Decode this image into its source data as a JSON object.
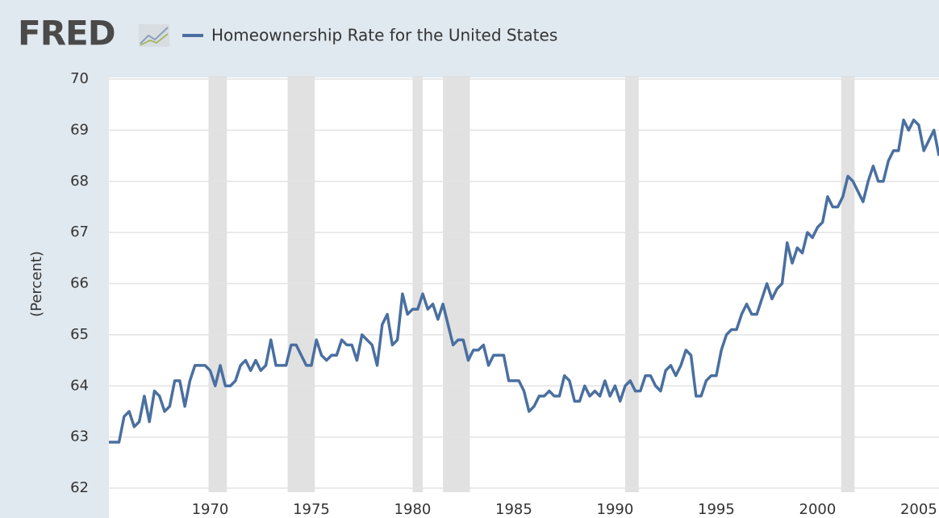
{
  "logo": "FRED",
  "chart_data": {
    "type": "line",
    "ylabel": "(Percent)",
    "x": [
      1965,
      1965.25,
      1965.5,
      1965.75,
      1966,
      1966.25,
      1966.5,
      1966.75,
      1967,
      1967.25,
      1967.5,
      1967.75,
      1968,
      1968.25,
      1968.5,
      1968.75,
      1969,
      1969.25,
      1969.5,
      1969.75,
      1970,
      1970.25,
      1970.5,
      1970.75,
      1971,
      1971.25,
      1971.5,
      1971.75,
      1972,
      1972.25,
      1972.5,
      1972.75,
      1973,
      1973.25,
      1973.5,
      1973.75,
      1974,
      1974.25,
      1974.5,
      1974.75,
      1975,
      1975.25,
      1975.5,
      1975.75,
      1976,
      1976.25,
      1976.5,
      1976.75,
      1977,
      1977.25,
      1977.5,
      1977.75,
      1978,
      1978.25,
      1978.5,
      1978.75,
      1979,
      1979.25,
      1979.5,
      1979.75,
      1980,
      1980.25,
      1980.5,
      1980.75,
      1981,
      1981.25,
      1981.5,
      1981.75,
      1982,
      1982.25,
      1982.5,
      1982.75,
      1983,
      1983.25,
      1983.5,
      1983.75,
      1984,
      1984.25,
      1984.5,
      1984.75,
      1985,
      1985.25,
      1985.5,
      1985.75,
      1986,
      1986.25,
      1986.5,
      1986.75,
      1987,
      1987.25,
      1987.5,
      1987.75,
      1988,
      1988.25,
      1988.5,
      1988.75,
      1989,
      1989.25,
      1989.5,
      1989.75,
      1990,
      1990.25,
      1990.5,
      1990.75,
      1991,
      1991.25,
      1991.5,
      1991.75,
      1992,
      1992.25,
      1992.5,
      1992.75,
      1993,
      1993.25,
      1993.5,
      1993.75,
      1994,
      1994.25,
      1994.5,
      1994.75,
      1995,
      1995.25,
      1995.5,
      1995.75,
      1996,
      1996.25,
      1996.5,
      1996.75,
      1997,
      1997.25,
      1997.5,
      1997.75,
      1998,
      1998.25,
      1998.5,
      1998.75,
      1999,
      1999.25,
      1999.5,
      1999.75,
      2000,
      2000.25,
      2000.5,
      2000.75,
      2001,
      2001.25,
      2001.5,
      2001.75,
      2002,
      2002.25,
      2002.5,
      2002.75,
      2003,
      2003.25,
      2003.5,
      2003.75,
      2004,
      2004.25,
      2004.5,
      2004.75,
      2005,
      2005.25,
      2005.5,
      2005.75,
      2006
    ],
    "series": [
      {
        "name": "Homeownership Rate for the United States",
        "color": "#4a6fa0",
        "values": [
          62.9,
          62.9,
          62.9,
          63.4,
          63.5,
          63.2,
          63.3,
          63.8,
          63.3,
          63.9,
          63.8,
          63.5,
          63.6,
          64.1,
          64.1,
          63.6,
          64.1,
          64.4,
          64.4,
          64.4,
          64.3,
          64.0,
          64.4,
          64.0,
          64.0,
          64.1,
          64.4,
          64.5,
          64.3,
          64.5,
          64.3,
          64.4,
          64.9,
          64.4,
          64.4,
          64.4,
          64.8,
          64.8,
          64.6,
          64.4,
          64.4,
          64.9,
          64.6,
          64.5,
          64.6,
          64.6,
          64.9,
          64.8,
          64.8,
          64.5,
          65.0,
          64.9,
          64.8,
          64.4,
          65.2,
          65.4,
          64.8,
          64.9,
          65.8,
          65.4,
          65.5,
          65.5,
          65.8,
          65.5,
          65.6,
          65.3,
          65.6,
          65.2,
          64.8,
          64.9,
          64.9,
          64.5,
          64.7,
          64.7,
          64.8,
          64.4,
          64.6,
          64.6,
          64.6,
          64.1,
          64.1,
          64.1,
          63.9,
          63.5,
          63.6,
          63.8,
          63.8,
          63.9,
          63.8,
          63.8,
          64.2,
          64.1,
          63.7,
          63.7,
          64.0,
          63.8,
          63.9,
          63.8,
          64.1,
          63.8,
          64.0,
          63.7,
          64.0,
          64.1,
          63.9,
          63.9,
          64.2,
          64.2,
          64.0,
          63.9,
          64.3,
          64.4,
          64.2,
          64.4,
          64.7,
          64.6,
          63.8,
          63.8,
          64.1,
          64.2,
          64.2,
          64.7,
          65.0,
          65.1,
          65.1,
          65.4,
          65.6,
          65.4,
          65.4,
          65.7,
          66.0,
          65.7,
          65.9,
          66.0,
          66.8,
          66.4,
          66.7,
          66.6,
          67.0,
          66.9,
          67.1,
          67.2,
          67.7,
          67.5,
          67.5,
          67.7,
          68.1,
          68.0,
          67.8,
          67.6,
          68.0,
          68.3,
          68.0,
          68.0,
          68.4,
          68.6,
          68.6,
          69.2,
          69.0,
          69.2,
          69.1,
          68.6,
          68.8,
          69.0,
          68.5
        ]
      }
    ],
    "recessions": [
      [
        1969.92,
        1970.83
      ],
      [
        1973.83,
        1975.17
      ],
      [
        1980.0,
        1980.5
      ],
      [
        1981.5,
        1982.83
      ],
      [
        1990.5,
        1991.17
      ],
      [
        2001.17,
        2001.83
      ]
    ],
    "recession_color": "#e1e1e1",
    "xlim": [
      1965,
      2006
    ],
    "ylim": [
      62,
      70
    ],
    "xticks": [
      1970,
      1975,
      1980,
      1985,
      1990,
      1995,
      2000,
      2005
    ],
    "yticks": [
      62,
      63,
      64,
      65,
      66,
      67,
      68,
      69,
      70
    ],
    "grid": true
  }
}
